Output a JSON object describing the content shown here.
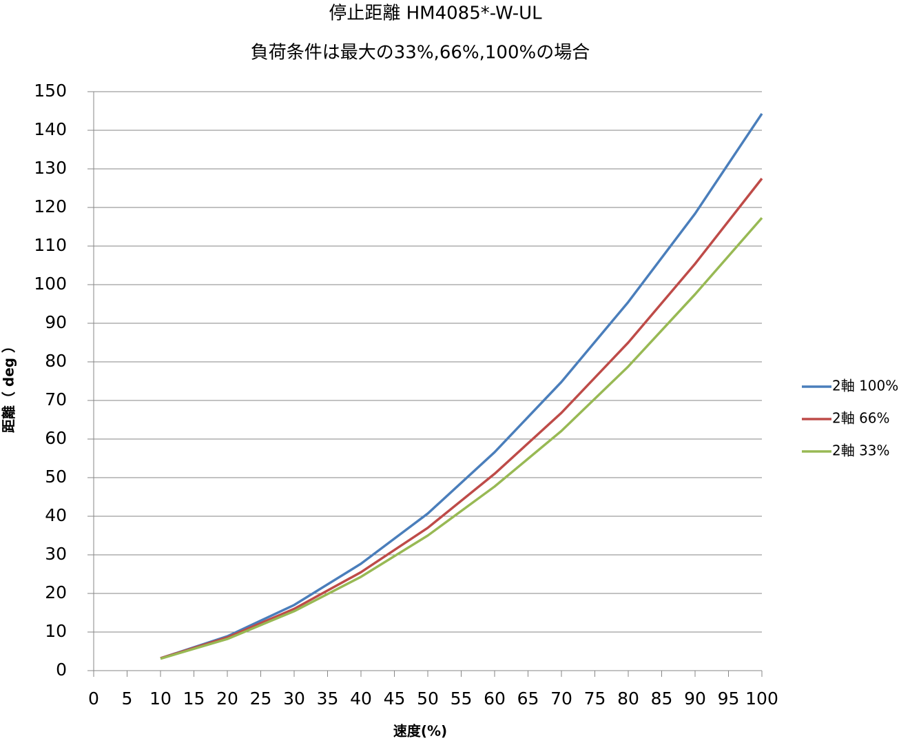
{
  "chart_data": {
    "type": "line",
    "title": "停止距離 HM4085*-W-UL",
    "subtitle": "負荷条件は最大の33%,66%,100%の場合",
    "x_label": "速度(%)",
    "y_label": "距離（ deg ）",
    "x": [
      10,
      20,
      30,
      40,
      50,
      60,
      70,
      80,
      90,
      100
    ],
    "series": [
      {
        "name": "2軸 100%",
        "color": "#4a7ebb",
        "values": [
          3.2,
          8.9,
          17,
          27.7,
          40.7,
          56.6,
          74.8,
          95.5,
          118.4,
          144.3
        ]
      },
      {
        "name": "2軸 66%",
        "color": "#be4b48",
        "values": [
          3.2,
          8.6,
          16,
          25.5,
          37,
          51,
          66.8,
          85,
          105.4,
          127.5
        ]
      },
      {
        "name": "2軸 33%",
        "color": "#98b954",
        "values": [
          3.1,
          8.2,
          15.4,
          24.3,
          35,
          47.7,
          62.1,
          78.8,
          97.5,
          117.3
        ]
      }
    ],
    "xlim": [
      0,
      100
    ],
    "xticks": [
      0,
      5,
      10,
      15,
      20,
      25,
      30,
      35,
      40,
      45,
      50,
      55,
      60,
      65,
      70,
      75,
      80,
      85,
      90,
      95,
      100
    ],
    "ylim": [
      0,
      150
    ],
    "yticks": [
      0,
      10,
      20,
      30,
      40,
      50,
      60,
      70,
      80,
      90,
      100,
      110,
      120,
      130,
      140,
      150
    ],
    "grid": true,
    "legend": "right"
  }
}
